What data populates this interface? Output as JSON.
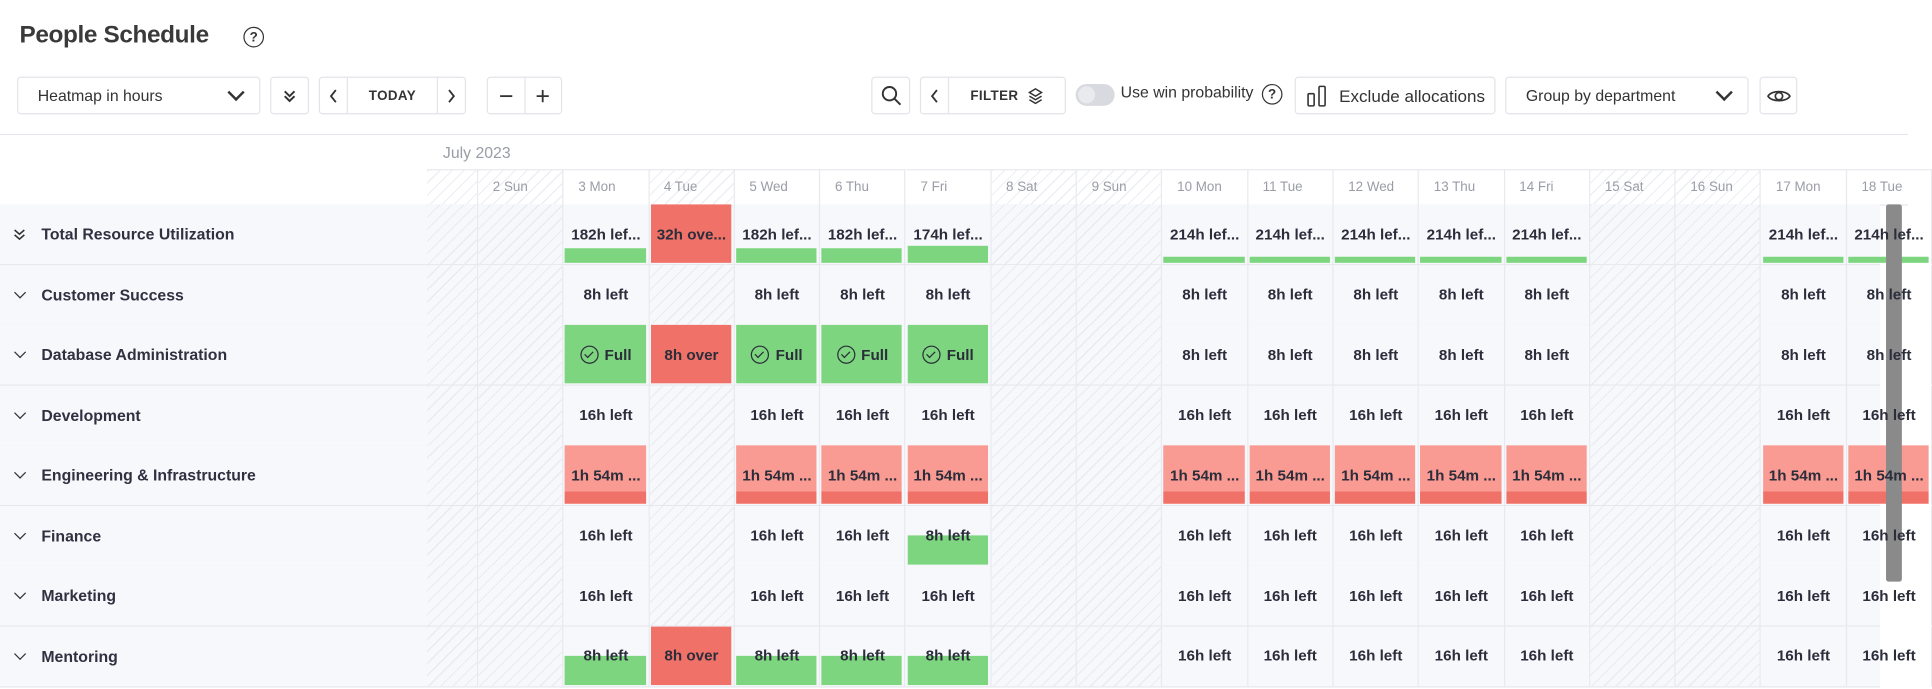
{
  "header": {
    "title": "People Schedule",
    "help_icon": "question-circle-icon"
  },
  "toolbar": {
    "view_select": "Heatmap in hours",
    "today_label": "TODAY",
    "filter_label": "FILTER",
    "win_probability_label": "Use win probability",
    "win_probability_enabled": false,
    "exclude_allocations_label": "Exclude allocations",
    "group_select": "Group by department"
  },
  "calendar": {
    "month": "July 2023",
    "days": [
      {
        "label": "",
        "off": true
      },
      {
        "label": "2 Sun",
        "off": true
      },
      {
        "label": "3 Mon",
        "off": false
      },
      {
        "label": "4 Tue",
        "off": true
      },
      {
        "label": "5 Wed",
        "off": false
      },
      {
        "label": "6 Thu",
        "off": false
      },
      {
        "label": "7 Fri",
        "off": false
      },
      {
        "label": "8 Sat",
        "off": true
      },
      {
        "label": "9 Sun",
        "off": true
      },
      {
        "label": "10 Mon",
        "off": false
      },
      {
        "label": "11 Tue",
        "off": false
      },
      {
        "label": "12 Wed",
        "off": false
      },
      {
        "label": "13 Thu",
        "off": false
      },
      {
        "label": "14 Fri",
        "off": false
      },
      {
        "label": "15 Sat",
        "off": true
      },
      {
        "label": "16 Sun",
        "off": true
      },
      {
        "label": "17 Mon",
        "off": false
      },
      {
        "label": "18 Tue",
        "off": false
      }
    ]
  },
  "colors": {
    "green": "#7dd67f",
    "red": "#f07167",
    "pink": "#f99a93",
    "row_bg": "#f7f8fc"
  },
  "rows": [
    {
      "name": "Total Resource Utilization",
      "icon": "double-chevron-down-icon",
      "cells": {
        "3 Mon": {
          "text": "182h lef...",
          "kind": "under",
          "fill": 0.25
        },
        "4 Tue": {
          "text": "32h ove...",
          "kind": "over"
        },
        "5 Wed": {
          "text": "182h lef...",
          "kind": "under",
          "fill": 0.25
        },
        "6 Thu": {
          "text": "182h lef...",
          "kind": "under",
          "fill": 0.25
        },
        "7 Fri": {
          "text": "174h lef...",
          "kind": "under",
          "fill": 0.3
        },
        "10 Mon": {
          "text": "214h lef...",
          "kind": "under",
          "fill": 0.1
        },
        "11 Tue": {
          "text": "214h lef...",
          "kind": "under",
          "fill": 0.1
        },
        "12 Wed": {
          "text": "214h lef...",
          "kind": "under",
          "fill": 0.1
        },
        "13 Thu": {
          "text": "214h lef...",
          "kind": "under",
          "fill": 0.1
        },
        "14 Fri": {
          "text": "214h lef...",
          "kind": "under",
          "fill": 0.1
        },
        "17 Mon": {
          "text": "214h lef...",
          "kind": "under",
          "fill": 0.1
        },
        "18 Tue": {
          "text": "214h lef...",
          "kind": "under",
          "fill": 0.1
        }
      }
    },
    {
      "name": "Customer Success",
      "icon": "chevron-down-icon",
      "cells": {
        "3 Mon": {
          "text": "8h left"
        },
        "5 Wed": {
          "text": "8h left"
        },
        "6 Thu": {
          "text": "8h left"
        },
        "7 Fri": {
          "text": "8h left"
        },
        "10 Mon": {
          "text": "8h left"
        },
        "11 Tue": {
          "text": "8h left"
        },
        "12 Wed": {
          "text": "8h left"
        },
        "13 Thu": {
          "text": "8h left"
        },
        "14 Fri": {
          "text": "8h left"
        },
        "17 Mon": {
          "text": "8h left"
        },
        "18 Tue": {
          "text": "8h left"
        }
      }
    },
    {
      "name": "Database Administration",
      "icon": "chevron-down-icon",
      "cells": {
        "3 Mon": {
          "text": "Full",
          "kind": "full"
        },
        "4 Tue": {
          "text": "8h over",
          "kind": "over"
        },
        "5 Wed": {
          "text": "Full",
          "kind": "full"
        },
        "6 Thu": {
          "text": "Full",
          "kind": "full"
        },
        "7 Fri": {
          "text": "Full",
          "kind": "full"
        },
        "10 Mon": {
          "text": "8h left"
        },
        "11 Tue": {
          "text": "8h left"
        },
        "12 Wed": {
          "text": "8h left"
        },
        "13 Thu": {
          "text": "8h left"
        },
        "14 Fri": {
          "text": "8h left"
        },
        "17 Mon": {
          "text": "8h left"
        },
        "18 Tue": {
          "text": "8h left"
        }
      }
    },
    {
      "name": "Development",
      "icon": "chevron-down-icon",
      "cells": {
        "3 Mon": {
          "text": "16h left"
        },
        "5 Wed": {
          "text": "16h left"
        },
        "6 Thu": {
          "text": "16h left"
        },
        "7 Fri": {
          "text": "16h left"
        },
        "10 Mon": {
          "text": "16h left"
        },
        "11 Tue": {
          "text": "16h left"
        },
        "12 Wed": {
          "text": "16h left"
        },
        "13 Thu": {
          "text": "16h left"
        },
        "14 Fri": {
          "text": "16h left"
        },
        "17 Mon": {
          "text": "16h left"
        },
        "18 Tue": {
          "text": "16h left"
        }
      }
    },
    {
      "name": "Engineering & Infrastructure",
      "icon": "chevron-down-icon",
      "cells": {
        "3 Mon": {
          "text": "1h 54m ...",
          "kind": "warn"
        },
        "5 Wed": {
          "text": "1h 54m ...",
          "kind": "warn"
        },
        "6 Thu": {
          "text": "1h 54m ...",
          "kind": "warn"
        },
        "7 Fri": {
          "text": "1h 54m ...",
          "kind": "warn"
        },
        "10 Mon": {
          "text": "1h 54m ...",
          "kind": "warn"
        },
        "11 Tue": {
          "text": "1h 54m ...",
          "kind": "warn"
        },
        "12 Wed": {
          "text": "1h 54m ...",
          "kind": "warn"
        },
        "13 Thu": {
          "text": "1h 54m ...",
          "kind": "warn"
        },
        "14 Fri": {
          "text": "1h 54m ...",
          "kind": "warn"
        },
        "17 Mon": {
          "text": "1h 54m ...",
          "kind": "warn"
        },
        "18 Tue": {
          "text": "1h 54m ...",
          "kind": "warn"
        }
      }
    },
    {
      "name": "Finance",
      "icon": "chevron-down-icon",
      "cells": {
        "3 Mon": {
          "text": "16h left"
        },
        "5 Wed": {
          "text": "16h left"
        },
        "6 Thu": {
          "text": "16h left"
        },
        "7 Fri": {
          "text": "8h left",
          "kind": "under",
          "fill": 0.5
        },
        "10 Mon": {
          "text": "16h left"
        },
        "11 Tue": {
          "text": "16h left"
        },
        "12 Wed": {
          "text": "16h left"
        },
        "13 Thu": {
          "text": "16h left"
        },
        "14 Fri": {
          "text": "16h left"
        },
        "17 Mon": {
          "text": "16h left"
        },
        "18 Tue": {
          "text": "16h left"
        }
      }
    },
    {
      "name": "Marketing",
      "icon": "chevron-down-icon",
      "cells": {
        "3 Mon": {
          "text": "16h left"
        },
        "5 Wed": {
          "text": "16h left"
        },
        "6 Thu": {
          "text": "16h left"
        },
        "7 Fri": {
          "text": "16h left"
        },
        "10 Mon": {
          "text": "16h left"
        },
        "11 Tue": {
          "text": "16h left"
        },
        "12 Wed": {
          "text": "16h left"
        },
        "13 Thu": {
          "text": "16h left"
        },
        "14 Fri": {
          "text": "16h left"
        },
        "17 Mon": {
          "text": "16h left"
        },
        "18 Tue": {
          "text": "16h left"
        }
      }
    },
    {
      "name": "Mentoring",
      "icon": "chevron-down-icon",
      "cells": {
        "3 Mon": {
          "text": "8h left",
          "kind": "under",
          "fill": 0.5
        },
        "4 Tue": {
          "text": "8h over",
          "kind": "over"
        },
        "5 Wed": {
          "text": "8h left",
          "kind": "under",
          "fill": 0.5
        },
        "6 Thu": {
          "text": "8h left",
          "kind": "under",
          "fill": 0.5
        },
        "7 Fri": {
          "text": "8h left",
          "kind": "under",
          "fill": 0.5
        },
        "10 Mon": {
          "text": "16h left"
        },
        "11 Tue": {
          "text": "16h left"
        },
        "12 Wed": {
          "text": "16h left"
        },
        "13 Thu": {
          "text": "16h left"
        },
        "14 Fri": {
          "text": "16h left"
        },
        "17 Mon": {
          "text": "16h left"
        },
        "18 Tue": {
          "text": "16h left"
        }
      }
    }
  ]
}
